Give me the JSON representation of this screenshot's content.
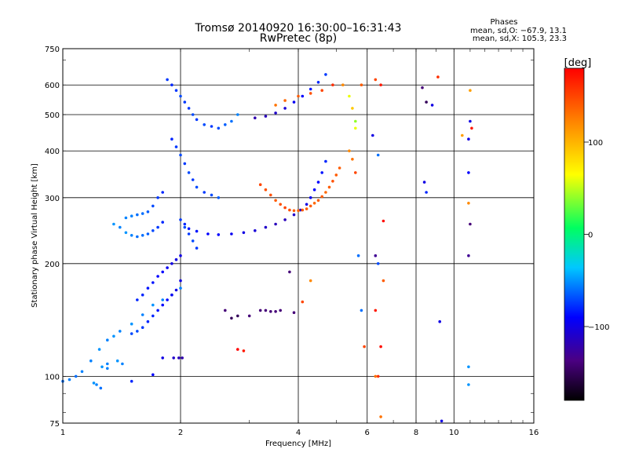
{
  "chart_data": {
    "type": "scatter",
    "title": "Tromsø 20140920 16:30:00–16:31:43",
    "subtitle": "RwPretec (8p)",
    "xlabel": "Frequency [MHz]",
    "ylabel": "Stationary phase Virtual Height [km]",
    "x_scale": "log",
    "y_scale": "log",
    "xlim": [
      1,
      16
    ],
    "ylim": [
      75,
      750
    ],
    "x_ticks": [
      "1",
      "2",
      "4",
      "6",
      "8",
      "10",
      "16"
    ],
    "x_tick_values": [
      1,
      2,
      4,
      6,
      8,
      10,
      16
    ],
    "y_ticks": [
      "750",
      "600",
      "500",
      "400",
      "300",
      "200",
      "100",
      "75"
    ],
    "y_tick_values": [
      750,
      600,
      500,
      400,
      300,
      200,
      100,
      75
    ],
    "grid": true,
    "annotation": {
      "title": "Phases",
      "line1": "mean, sd,O: −67.9, 13.1",
      "line2": "mean, sd,X: 105.3, 23.3"
    },
    "colorbar": {
      "label": "[deg]",
      "range": [
        -180,
        180
      ],
      "ticks": [
        "100",
        "0",
        "−100"
      ],
      "tick_values": [
        100,
        0,
        -100
      ],
      "colors": [
        "#000000",
        "#4b0082",
        "#0000ff",
        "#00c8ff",
        "#00ff60",
        "#ffff00",
        "#ff8c00",
        "#ff0000"
      ]
    },
    "series": [
      {
        "points": [
          [
            1.0,
            97,
            -60
          ],
          [
            1.04,
            98,
            -55
          ],
          [
            1.08,
            100,
            -60
          ],
          [
            1.12,
            103,
            -55
          ],
          [
            1.18,
            110,
            -55
          ],
          [
            1.24,
            118,
            -50
          ],
          [
            1.3,
            125,
            -55
          ],
          [
            1.35,
            128,
            -50
          ],
          [
            1.4,
            132,
            -55
          ],
          [
            1.5,
            138,
            -50
          ],
          [
            1.6,
            146,
            -55
          ],
          [
            1.7,
            155,
            -50
          ],
          [
            1.8,
            160,
            -55
          ],
          [
            1.9,
            165,
            -50
          ],
          [
            2.0,
            172,
            -55
          ]
        ]
      },
      {
        "points": [
          [
            1.3,
            108,
            -55
          ],
          [
            1.38,
            110,
            -50
          ],
          [
            1.42,
            108,
            -55
          ],
          [
            1.26,
            106,
            -50
          ],
          [
            1.3,
            105,
            -55
          ]
        ]
      },
      {
        "points": [
          [
            1.2,
            96,
            -50
          ],
          [
            1.22,
            95,
            -55
          ],
          [
            1.25,
            93,
            -60
          ],
          [
            1.5,
            97,
            -80
          ],
          [
            1.7,
            101,
            -90
          ],
          [
            1.8,
            112,
            -100
          ],
          [
            1.92,
            112,
            -110
          ],
          [
            1.98,
            112,
            -115
          ],
          [
            2.02,
            112,
            -120
          ]
        ]
      },
      {
        "points": [
          [
            1.5,
            130,
            -70
          ],
          [
            1.55,
            132,
            -70
          ],
          [
            1.6,
            135,
            -75
          ],
          [
            1.65,
            140,
            -80
          ],
          [
            1.7,
            145,
            -80
          ],
          [
            1.75,
            150,
            -85
          ],
          [
            1.8,
            155,
            -90
          ],
          [
            1.85,
            160,
            -90
          ],
          [
            1.9,
            165,
            -95
          ],
          [
            1.95,
            170,
            -100
          ],
          [
            2.0,
            180,
            -100
          ]
        ]
      },
      {
        "points": [
          [
            1.55,
            160,
            -80
          ],
          [
            1.6,
            165,
            -80
          ],
          [
            1.65,
            172,
            -85
          ],
          [
            1.7,
            178,
            -85
          ],
          [
            1.75,
            185,
            -90
          ],
          [
            1.8,
            190,
            -90
          ],
          [
            1.85,
            195,
            -95
          ],
          [
            1.9,
            200,
            -100
          ],
          [
            1.95,
            205,
            -100
          ],
          [
            2.0,
            210,
            -100
          ]
        ]
      },
      {
        "points": [
          [
            1.35,
            255,
            -50
          ],
          [
            1.4,
            250,
            -55
          ],
          [
            1.45,
            242,
            -50
          ],
          [
            1.5,
            238,
            -55
          ],
          [
            1.55,
            236,
            -60
          ],
          [
            1.6,
            238,
            -60
          ],
          [
            1.65,
            240,
            -65
          ],
          [
            1.7,
            245,
            -70
          ],
          [
            1.75,
            250,
            -75
          ],
          [
            1.8,
            258,
            -80
          ]
        ]
      },
      {
        "points": [
          [
            1.45,
            265,
            -55
          ],
          [
            1.5,
            268,
            -55
          ],
          [
            1.55,
            270,
            -60
          ],
          [
            1.6,
            272,
            -60
          ],
          [
            1.65,
            275,
            -65
          ],
          [
            1.7,
            285,
            -70
          ],
          [
            1.75,
            300,
            -75
          ],
          [
            1.8,
            310,
            -80
          ]
        ]
      },
      {
        "points": [
          [
            2.0,
            262,
            -75
          ],
          [
            2.05,
            255,
            -80
          ],
          [
            2.1,
            248,
            -85
          ],
          [
            2.2,
            244,
            -85
          ],
          [
            2.35,
            240,
            -90
          ],
          [
            2.5,
            239,
            -90
          ],
          [
            2.7,
            240,
            -95
          ],
          [
            2.9,
            242,
            -100
          ],
          [
            3.1,
            245,
            -105
          ],
          [
            3.3,
            250,
            -110
          ],
          [
            3.5,
            255,
            -115
          ],
          [
            3.7,
            262,
            -115
          ],
          [
            3.9,
            270,
            -110
          ],
          [
            4.05,
            278,
            -105
          ],
          [
            4.2,
            288,
            -100
          ],
          [
            4.3,
            300,
            -95
          ],
          [
            4.4,
            315,
            -90
          ],
          [
            4.5,
            330,
            -90
          ],
          [
            4.6,
            350,
            -85
          ],
          [
            4.7,
            375,
            -80
          ]
        ]
      },
      {
        "points": [
          [
            3.2,
            325,
            150
          ],
          [
            3.3,
            315,
            145
          ],
          [
            3.4,
            305,
            145
          ],
          [
            3.5,
            295,
            140
          ],
          [
            3.6,
            288,
            145
          ],
          [
            3.7,
            282,
            150
          ],
          [
            3.8,
            278,
            145
          ],
          [
            3.9,
            277,
            140
          ],
          [
            4.0,
            277,
            135
          ],
          [
            4.1,
            278,
            140
          ],
          [
            4.2,
            280,
            140
          ],
          [
            4.3,
            285,
            140
          ],
          [
            4.4,
            290,
            135
          ],
          [
            4.5,
            295,
            140
          ],
          [
            4.6,
            302,
            140
          ],
          [
            4.7,
            310,
            135
          ],
          [
            4.8,
            320,
            140
          ],
          [
            4.9,
            332,
            145
          ],
          [
            5.0,
            345,
            140
          ],
          [
            5.1,
            360,
            140
          ]
        ]
      },
      {
        "points": [
          [
            3.1,
            490,
            -120
          ],
          [
            3.3,
            495,
            -115
          ],
          [
            3.5,
            505,
            -110
          ],
          [
            3.7,
            520,
            -105
          ],
          [
            3.9,
            540,
            -95
          ],
          [
            4.1,
            560,
            -90
          ],
          [
            4.3,
            585,
            -85
          ],
          [
            4.5,
            610,
            -80
          ],
          [
            4.7,
            640,
            -75
          ]
        ]
      },
      {
        "points": [
          [
            3.5,
            530,
            130
          ],
          [
            3.7,
            545,
            135
          ],
          [
            4.0,
            560,
            140
          ],
          [
            4.3,
            570,
            145
          ],
          [
            4.6,
            580,
            150
          ],
          [
            4.9,
            600,
            160
          ]
        ]
      },
      {
        "points": [
          [
            1.85,
            620,
            -75
          ],
          [
            1.9,
            600,
            -80
          ],
          [
            1.95,
            580,
            -75
          ],
          [
            2.0,
            560,
            -70
          ],
          [
            2.05,
            540,
            -75
          ],
          [
            2.1,
            520,
            -75
          ],
          [
            2.15,
            500,
            -70
          ],
          [
            2.2,
            485,
            -75
          ],
          [
            2.3,
            470,
            -70
          ],
          [
            2.4,
            465,
            -75
          ],
          [
            2.5,
            460,
            -70
          ],
          [
            2.6,
            470,
            -65
          ],
          [
            2.7,
            480,
            -60
          ],
          [
            2.8,
            500,
            -55
          ]
        ]
      },
      {
        "points": [
          [
            1.9,
            430,
            -80
          ],
          [
            1.95,
            410,
            -75
          ],
          [
            2.0,
            390,
            -70
          ],
          [
            2.05,
            370,
            -75
          ],
          [
            2.1,
            350,
            -70
          ],
          [
            2.15,
            335,
            -75
          ],
          [
            2.2,
            320,
            -70
          ],
          [
            2.3,
            310,
            -75
          ],
          [
            2.4,
            305,
            -70
          ],
          [
            2.5,
            300,
            -65
          ]
        ]
      },
      {
        "points": [
          [
            2.05,
            250,
            -70
          ],
          [
            2.1,
            240,
            -75
          ],
          [
            2.15,
            230,
            -70
          ],
          [
            2.2,
            220,
            -75
          ]
        ]
      },
      {
        "points": [
          [
            3.2,
            150,
            -140
          ],
          [
            3.3,
            150,
            -140
          ],
          [
            3.4,
            149,
            -140
          ],
          [
            3.5,
            149,
            -140
          ],
          [
            3.6,
            150,
            -140
          ]
        ]
      },
      {
        "points": [
          [
            2.6,
            150,
            -140
          ],
          [
            2.7,
            143,
            -150
          ],
          [
            2.8,
            145,
            -150
          ],
          [
            3.0,
            145,
            -140
          ],
          [
            2.8,
            118,
            180
          ],
          [
            2.9,
            117,
            170
          ],
          [
            3.9,
            148,
            -140
          ],
          [
            3.8,
            190,
            -140
          ],
          [
            4.3,
            180,
            120
          ],
          [
            4.1,
            158,
            150
          ]
        ]
      },
      {
        "points": [
          [
            6.3,
            620,
            150
          ],
          [
            6.5,
            600,
            170
          ],
          [
            6.2,
            440,
            -100
          ],
          [
            6.4,
            390,
            -60
          ],
          [
            6.6,
            260,
            175
          ],
          [
            6.3,
            210,
            -130
          ],
          [
            6.4,
            200,
            -70
          ],
          [
            6.6,
            180,
            140
          ],
          [
            6.3,
            150,
            170
          ],
          [
            6.5,
            120,
            175
          ],
          [
            6.4,
            100,
            160
          ],
          [
            6.5,
            78,
            130
          ],
          [
            6.3,
            100,
            130
          ]
        ]
      },
      {
        "points": [
          [
            8.3,
            590,
            -140
          ],
          [
            8.5,
            540,
            -150
          ],
          [
            8.8,
            530,
            -100
          ],
          [
            9.1,
            630,
            160
          ],
          [
            8.4,
            330,
            -100
          ],
          [
            8.5,
            310,
            -80
          ],
          [
            9.2,
            140,
            -100
          ],
          [
            9.3,
            76,
            -100
          ]
        ]
      },
      {
        "points": [
          [
            10.5,
            440,
            110
          ],
          [
            10.9,
            430,
            -100
          ],
          [
            11.0,
            480,
            -100
          ],
          [
            11.1,
            460,
            170
          ],
          [
            10.9,
            350,
            -90
          ],
          [
            10.9,
            290,
            120
          ],
          [
            11.0,
            255,
            -140
          ],
          [
            10.9,
            210,
            -130
          ],
          [
            10.9,
            106,
            -50
          ],
          [
            10.9,
            95,
            -50
          ],
          [
            11.0,
            580,
            110
          ]
        ]
      },
      {
        "points": [
          [
            5.2,
            600,
            120
          ],
          [
            5.4,
            560,
            60
          ],
          [
            5.5,
            520,
            90
          ],
          [
            5.6,
            480,
            40
          ],
          [
            5.6,
            460,
            60
          ],
          [
            5.4,
            400,
            120
          ],
          [
            5.5,
            380,
            130
          ],
          [
            5.6,
            350,
            150
          ],
          [
            5.8,
            600,
            140
          ],
          [
            5.7,
            210,
            -60
          ],
          [
            5.8,
            150,
            -60
          ],
          [
            5.9,
            120,
            150
          ]
        ]
      }
    ]
  }
}
